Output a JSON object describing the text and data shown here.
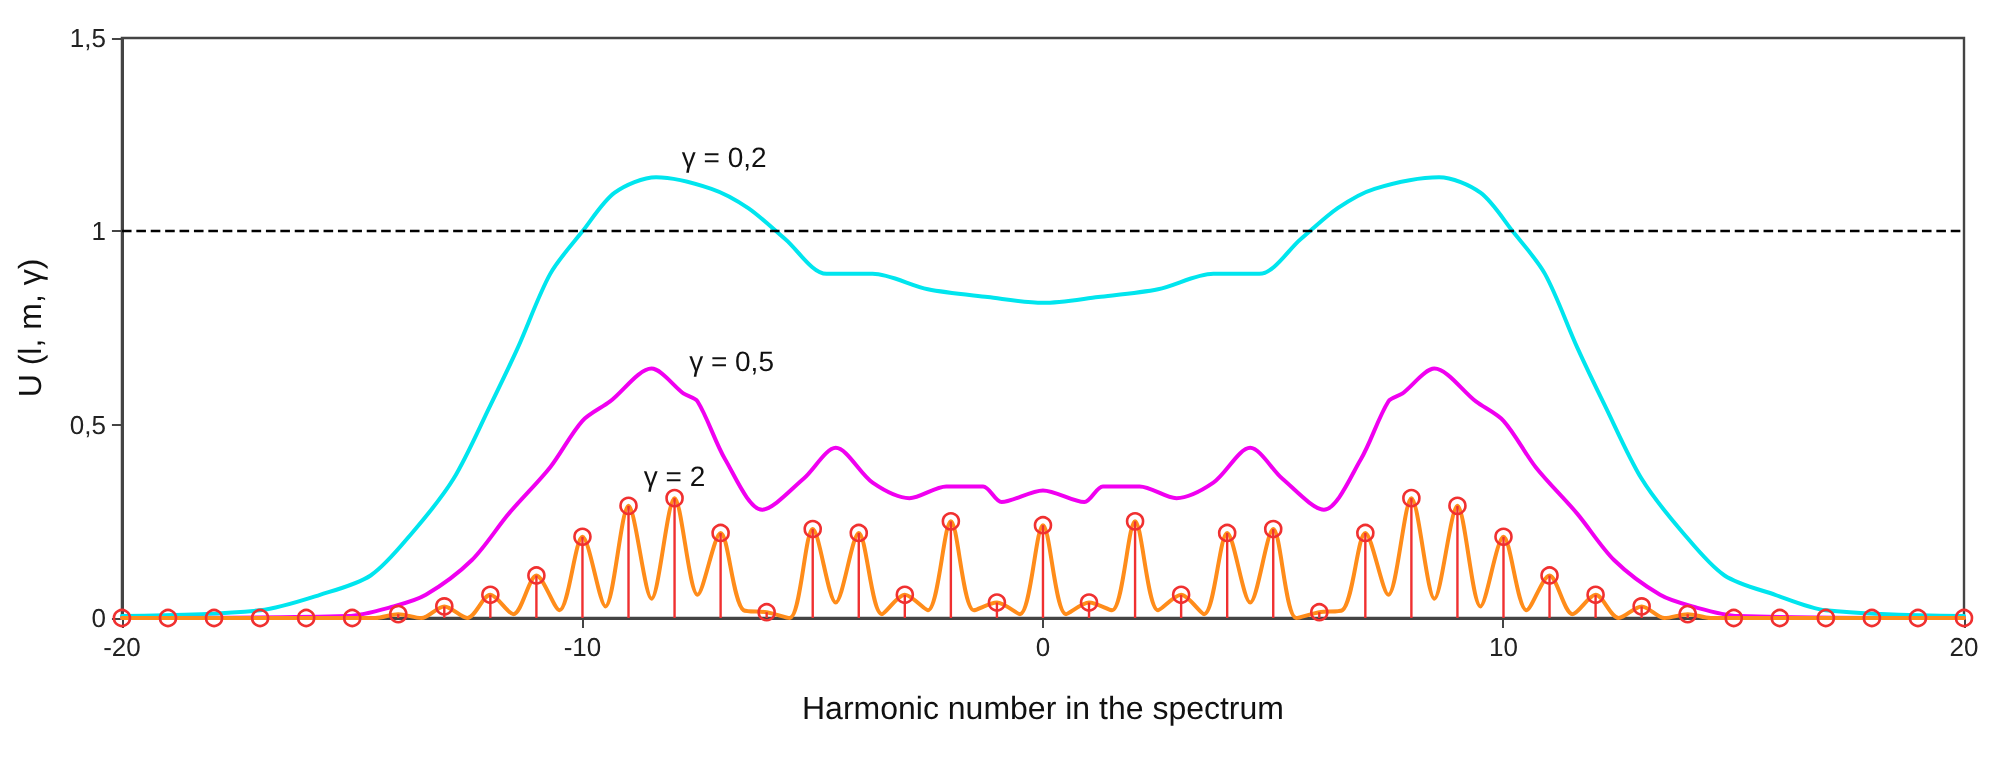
{
  "chart_data": {
    "type": "line",
    "xlabel": "Harmonic number in the spectrum",
    "ylabel": "U (l, m, γ)",
    "xlim": [
      -20,
      20
    ],
    "xticks": [
      -20,
      -10,
      0,
      10,
      20
    ],
    "ylim": [
      0,
      1.5
    ],
    "yticks": [
      0,
      {
        "value": 0.5,
        "label": "0,5"
      },
      1,
      {
        "value": 1.5,
        "label": "1,5"
      }
    ],
    "grid": false,
    "legend": false,
    "marker": "none",
    "line_style": "solid",
    "ref_lines": [
      {
        "axis": "y",
        "value": 1,
        "color": "#000000",
        "line_style": "dashed"
      }
    ],
    "series": [
      {
        "name": "γ = 0,2",
        "color": "#00e5ee",
        "x": [
          -20,
          -17,
          -15.7,
          -14.6,
          -13.7,
          -12.8,
          -12,
          -11.4,
          -10.7,
          -10,
          -9.3,
          -8.4,
          -7.2,
          -6.4,
          -5.6,
          -4.7,
          -3.7,
          -2.5,
          -1.2,
          0,
          1.2,
          2.5,
          3.7,
          4.7,
          5.6,
          6.4,
          7.2,
          8.6,
          9.5,
          10.2,
          10.9,
          11.6,
          12.2,
          13,
          13.9,
          14.8,
          15.9,
          17,
          20
        ],
        "values": [
          0.005,
          0.02,
          0.06,
          0.11,
          0.22,
          0.36,
          0.55,
          0.7,
          0.89,
          1.0,
          1.1,
          1.14,
          1.11,
          1.06,
          0.98,
          0.89,
          0.89,
          0.85,
          0.83,
          0.815,
          0.83,
          0.85,
          0.89,
          0.89,
          0.98,
          1.06,
          1.11,
          1.14,
          1.1,
          1.0,
          0.89,
          0.7,
          0.55,
          0.36,
          0.22,
          0.11,
          0.06,
          0.02,
          0.005
        ]
      },
      {
        "name": "γ = 0,5",
        "color": "#f000f0",
        "x": [
          -20,
          -15.1,
          -14.1,
          -13.4,
          -12.4,
          -11.6,
          -10.7,
          -10,
          -9.4,
          -8.5,
          -7.8,
          -7.5,
          -6.9,
          -6.1,
          -5.2,
          -4.5,
          -3.7,
          -2.9,
          -2.1,
          -1.3,
          -0.9,
          0,
          0.9,
          1.3,
          2.1,
          2.9,
          3.7,
          4.5,
          5.2,
          6.1,
          6.9,
          7.5,
          7.8,
          8.5,
          9.4,
          10,
          10.7,
          11.6,
          12.4,
          13.4,
          14.1,
          15.1,
          20
        ],
        "values": [
          0,
          0.005,
          0.03,
          0.06,
          0.15,
          0.27,
          0.39,
          0.51,
          0.56,
          0.645,
          0.58,
          0.56,
          0.41,
          0.28,
          0.36,
          0.44,
          0.35,
          0.31,
          0.34,
          0.34,
          0.3,
          0.33,
          0.3,
          0.34,
          0.34,
          0.31,
          0.35,
          0.44,
          0.36,
          0.28,
          0.41,
          0.56,
          0.58,
          0.645,
          0.56,
          0.51,
          0.39,
          0.27,
          0.15,
          0.06,
          0.03,
          0.005,
          0
        ]
      },
      {
        "name": "γ = 2",
        "color": "#ff8c1a",
        "x": [
          -20,
          -14.5,
          -14,
          -13.5,
          -13,
          -12.5,
          -12,
          -11.5,
          -11,
          -10.5,
          -10,
          -9.5,
          -9,
          -8.5,
          -8,
          -7.5,
          -7,
          -6.5,
          -6,
          -5.5,
          -5,
          -4.5,
          -4,
          -3.5,
          -3,
          -2.5,
          -2,
          -1.5,
          -1,
          -0.5,
          0,
          0.5,
          1,
          1.5,
          2,
          2.5,
          3,
          3.5,
          4,
          4.5,
          5,
          5.5,
          6,
          6.5,
          7,
          7.5,
          8,
          8.5,
          9,
          9.5,
          10,
          10.5,
          11,
          11.5,
          12,
          12.5,
          13,
          13.5,
          14,
          14.5,
          20
        ],
        "values": [
          0,
          0,
          0.01,
          0,
          0.03,
          0,
          0.06,
          0.01,
          0.11,
          0.02,
          0.21,
          0.03,
          0.29,
          0.05,
          0.31,
          0.06,
          0.22,
          0.02,
          0.015,
          0,
          0.23,
          0.04,
          0.22,
          0.01,
          0.06,
          0.02,
          0.25,
          0.02,
          0.04,
          0.01,
          0.24,
          0.01,
          0.04,
          0.02,
          0.25,
          0.02,
          0.06,
          0.01,
          0.22,
          0.04,
          0.23,
          0,
          0.015,
          0.02,
          0.22,
          0.06,
          0.31,
          0.05,
          0.29,
          0.03,
          0.21,
          0.02,
          0.11,
          0.01,
          0.06,
          0,
          0.03,
          0,
          0.01,
          0,
          0
        ]
      },
      {
        "type": "lollipop",
        "color": "#f03030",
        "marker": "circle",
        "x": [
          -20,
          -19,
          -18,
          -17,
          -16,
          -15,
          -14,
          -13,
          -12,
          -11,
          -10,
          -9,
          -8,
          -7,
          -6,
          -5,
          -4,
          -3,
          -2,
          -1,
          0,
          1,
          2,
          3,
          4,
          5,
          6,
          7,
          8,
          9,
          10,
          11,
          12,
          13,
          14,
          15,
          16,
          17,
          18,
          19,
          20
        ],
        "values": [
          0,
          0,
          0,
          0,
          0,
          0,
          0.01,
          0.03,
          0.06,
          0.11,
          0.21,
          0.29,
          0.31,
          0.22,
          0.015,
          0.23,
          0.22,
          0.06,
          0.25,
          0.04,
          0.24,
          0.04,
          0.25,
          0.06,
          0.22,
          0.23,
          0.015,
          0.22,
          0.31,
          0.29,
          0.21,
          0.11,
          0.06,
          0.03,
          0.01,
          0,
          0,
          0,
          0,
          0,
          0
        ]
      }
    ]
  }
}
